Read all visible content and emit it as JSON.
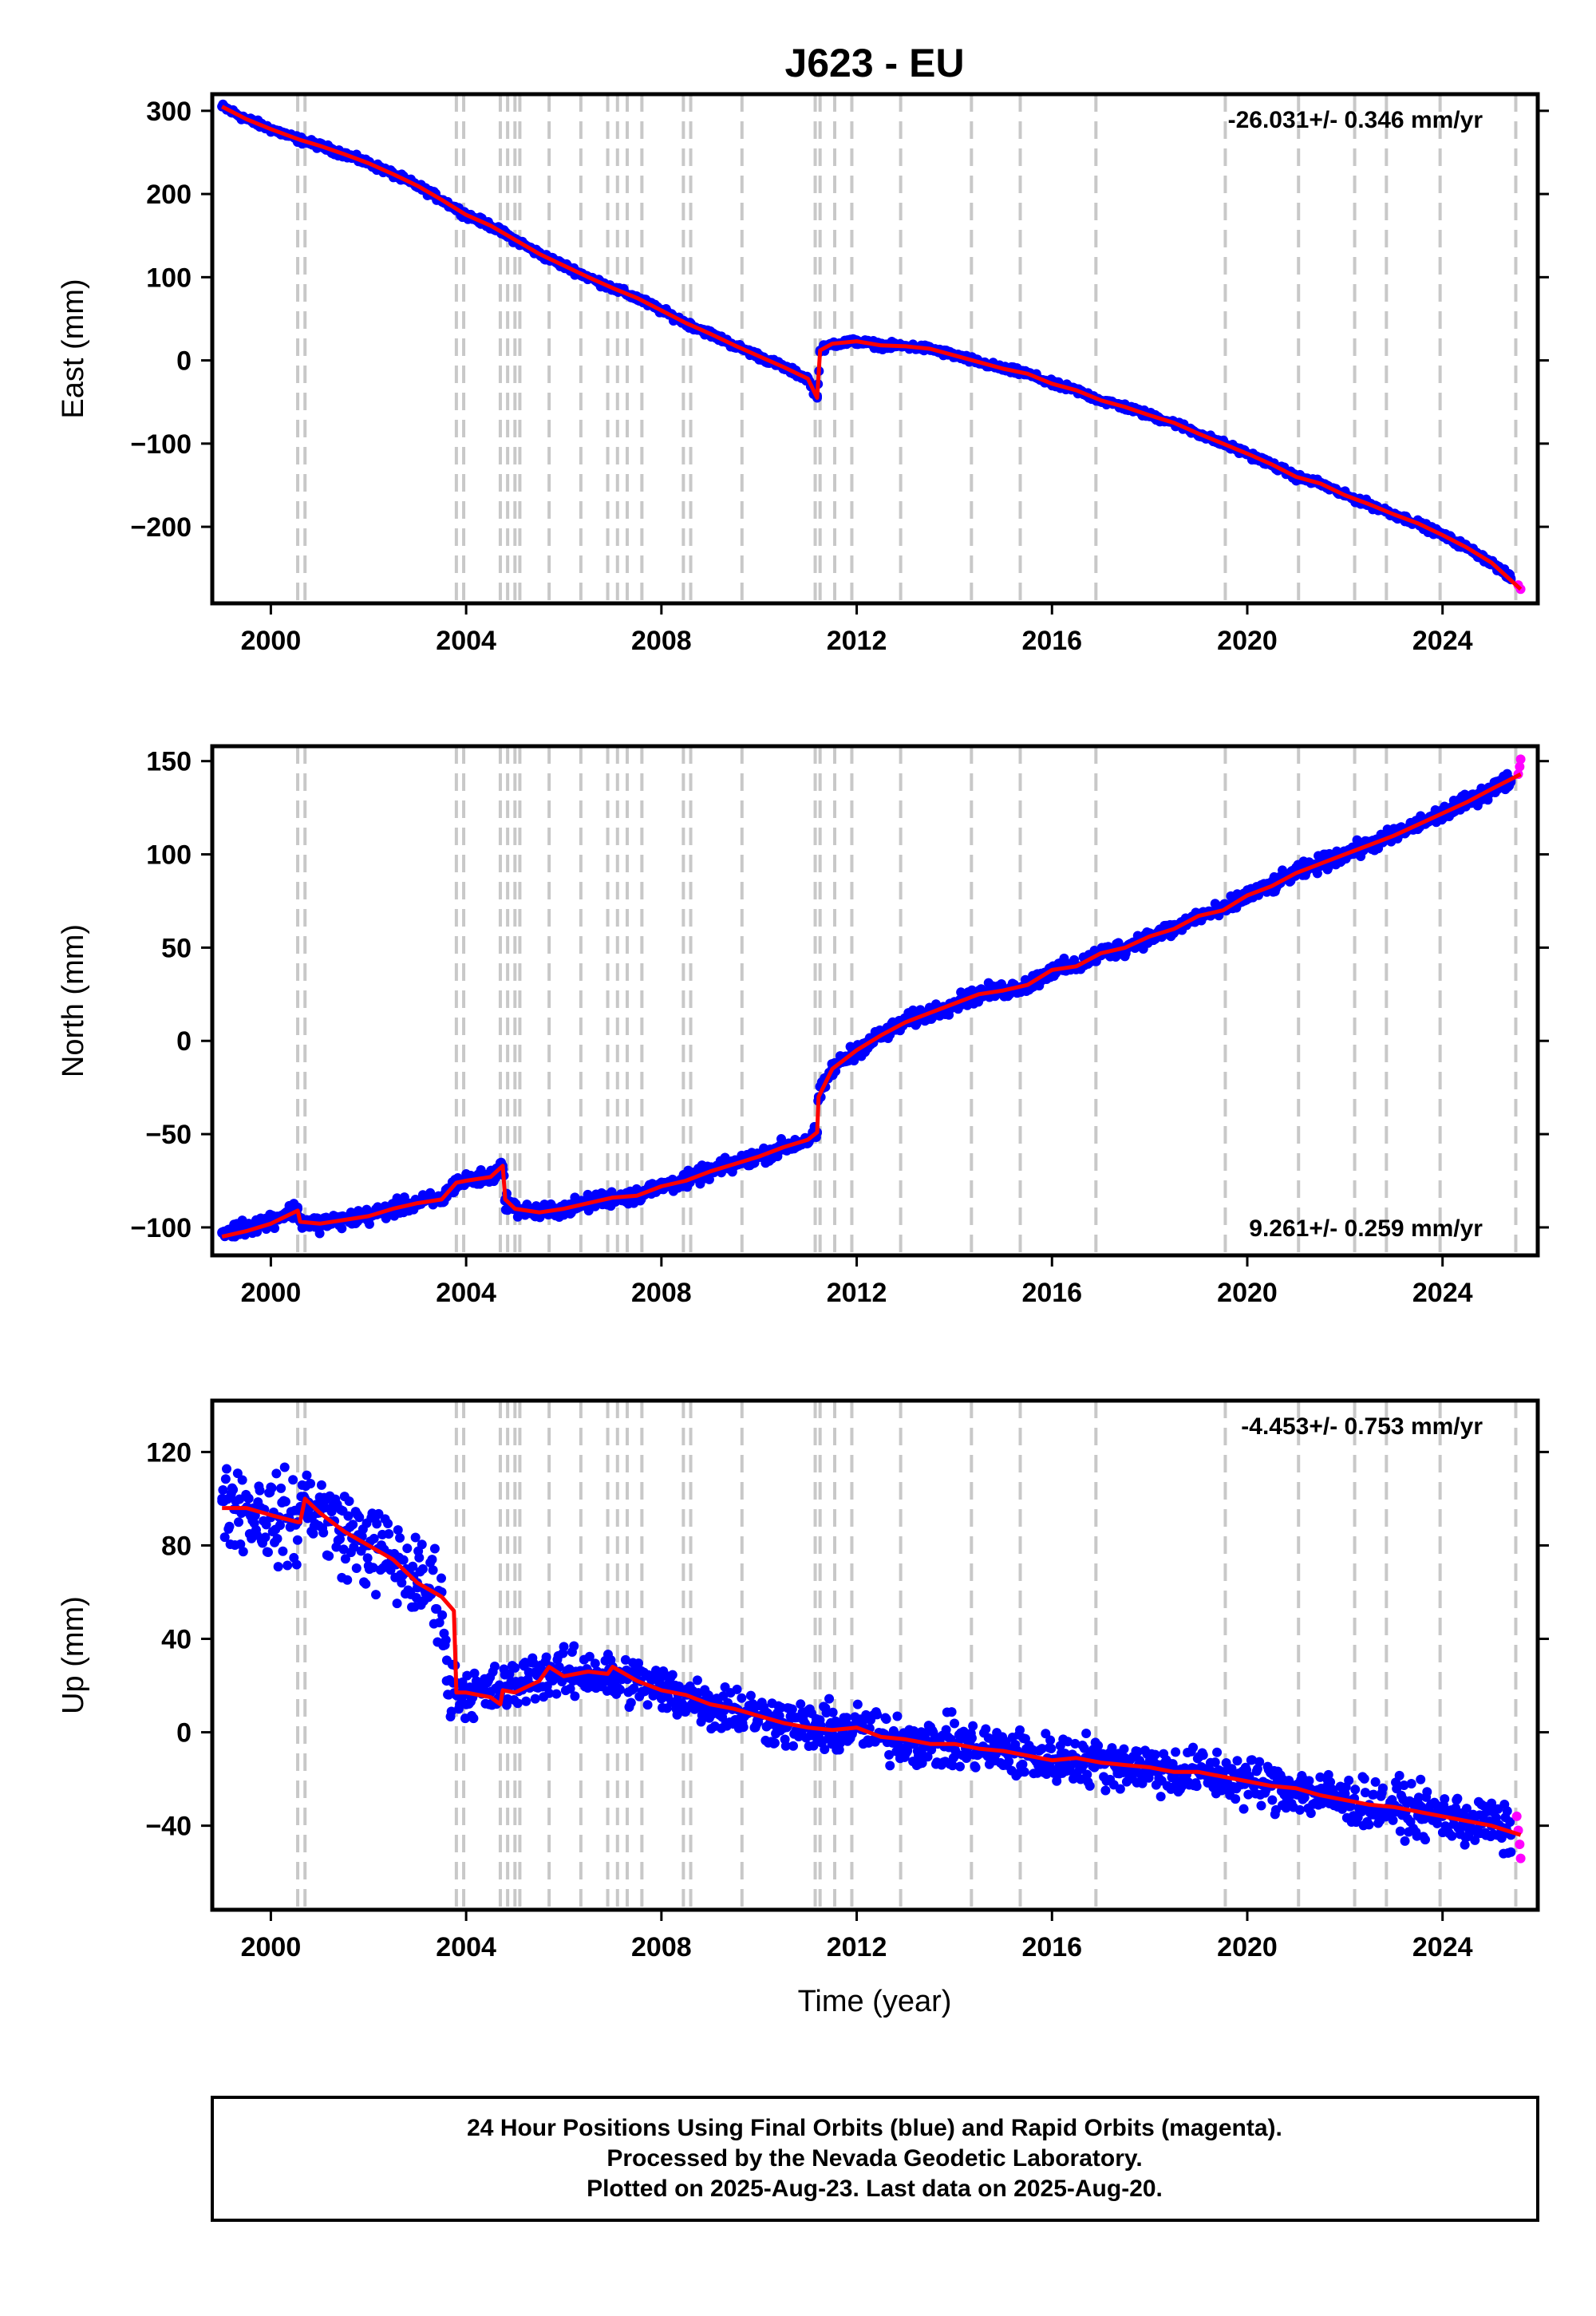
{
  "title": "J623 - EU",
  "xlabel": "Time (year)",
  "caption": {
    "line1": "24 Hour Positions Using Final Orbits (blue) and Rapid Orbits (magenta).",
    "line2": "Processed by the Nevada Geodetic Laboratory.",
    "line3": "Plotted on 2025-Aug-23. Last data on 2025-Aug-20."
  },
  "colors": {
    "final_orbits": "#0000ff",
    "rapid_orbits": "#ff00ff",
    "model": "#ff0000",
    "event_lines": "#c8c8c8",
    "frame": "#000000"
  },
  "chart_data": [
    {
      "type": "scatter",
      "component": "East",
      "ylabel": "East (mm)",
      "rate_label": "-26.031+/- 0.346 mm/yr",
      "rate_position": "top-right",
      "xlim": [
        1998.8,
        2025.95
      ],
      "ylim": [
        -292,
        320
      ],
      "x_ticks": [
        "2000",
        "2004",
        "2008",
        "2012",
        "2016",
        "2020",
        "2024"
      ],
      "x_tick_values": [
        2000,
        2004,
        2008,
        2012,
        2016,
        2020,
        2024
      ],
      "y_ticks": [
        "300",
        "200",
        "100",
        "0",
        "−100",
        "−200"
      ],
      "y_tick_values": [
        300,
        200,
        100,
        0,
        -100,
        -200
      ],
      "event_lines": [
        2000.55,
        2000.7,
        2003.8,
        2003.95,
        2004.7,
        2004.85,
        2005.0,
        2005.1,
        2005.7,
        2006.35,
        2006.9,
        2007.1,
        2007.3,
        2007.6,
        2008.45,
        2008.6,
        2009.65,
        2011.15,
        2011.25,
        2011.55,
        2011.9,
        2012.9,
        2014.35,
        2015.35,
        2016.9,
        2019.55,
        2021.05,
        2022.2,
        2022.85,
        2023.95,
        2025.5
      ],
      "series": [
        {
          "name": "Final Orbits",
          "style": "points",
          "color": "#0000ff",
          "x": [
            1999.0,
            1999.5,
            2000.0,
            2000.6,
            2001.0,
            2001.5,
            2002.0,
            2002.5,
            2003.0,
            2003.5,
            2004.0,
            2004.5,
            2005.0,
            2005.5,
            2006.0,
            2006.5,
            2007.0,
            2007.5,
            2008.0,
            2008.5,
            2009.0,
            2009.5,
            2010.0,
            2010.5,
            2011.0,
            2011.19,
            2011.25,
            2011.5,
            2012.0,
            2012.5,
            2013.0,
            2013.5,
            2014.0,
            2014.5,
            2015.0,
            2015.5,
            2016.0,
            2016.5,
            2017.0,
            2017.5,
            2018.0,
            2018.5,
            2019.0,
            2019.5,
            2020.0,
            2020.5,
            2021.0,
            2021.5,
            2022.0,
            2022.5,
            2023.0,
            2023.5,
            2024.0,
            2024.5,
            2025.0,
            2025.4
          ],
          "y": [
            305,
            290,
            278,
            265,
            258,
            248,
            237,
            224,
            210,
            193,
            175,
            162,
            145,
            128,
            114,
            100,
            87,
            75,
            60,
            45,
            32,
            18,
            5,
            -8,
            -22,
            -45,
            12,
            20,
            23,
            18,
            17,
            14,
            6,
            -2,
            -10,
            -16,
            -28,
            -36,
            -48,
            -56,
            -66,
            -75,
            -88,
            -100,
            -112,
            -125,
            -140,
            -148,
            -162,
            -173,
            -185,
            -196,
            -210,
            -225,
            -243,
            -262
          ]
        },
        {
          "name": "Rapid Orbits",
          "style": "points",
          "color": "#ff00ff",
          "x": [
            2025.55,
            2025.6
          ],
          "y": [
            -270,
            -275
          ]
        },
        {
          "name": "Model",
          "style": "line",
          "color": "#ff0000",
          "x": [
            1999.0,
            1999.5,
            2000.0,
            2000.6,
            2001.0,
            2001.5,
            2002.0,
            2002.5,
            2003.0,
            2003.5,
            2004.0,
            2004.5,
            2005.0,
            2005.5,
            2006.0,
            2006.5,
            2007.0,
            2007.5,
            2008.0,
            2008.5,
            2009.0,
            2009.5,
            2010.0,
            2010.5,
            2011.0,
            2011.19,
            2011.25,
            2011.5,
            2012.0,
            2012.5,
            2013.0,
            2013.5,
            2014.0,
            2014.5,
            2015.0,
            2015.5,
            2016.0,
            2016.5,
            2017.0,
            2017.5,
            2018.0,
            2018.5,
            2019.0,
            2019.5,
            2020.0,
            2020.5,
            2021.0,
            2021.5,
            2022.0,
            2022.5,
            2023.0,
            2023.5,
            2024.0,
            2024.5,
            2025.0,
            2025.6
          ],
          "y": [
            305,
            290,
            278,
            265,
            258,
            248,
            237,
            224,
            210,
            193,
            175,
            162,
            145,
            128,
            114,
            100,
            87,
            75,
            60,
            45,
            32,
            18,
            5,
            -8,
            -22,
            -45,
            12,
            20,
            23,
            18,
            17,
            14,
            6,
            -2,
            -10,
            -16,
            -28,
            -36,
            -48,
            -56,
            -66,
            -75,
            -88,
            -100,
            -112,
            -125,
            -140,
            -148,
            -162,
            -173,
            -185,
            -196,
            -210,
            -225,
            -243,
            -275
          ]
        }
      ]
    },
    {
      "type": "scatter",
      "component": "North",
      "ylabel": "North (mm)",
      "rate_label": "9.261+/- 0.259 mm/yr",
      "rate_position": "bottom-right",
      "xlim": [
        1998.8,
        2025.95
      ],
      "ylim": [
        -115,
        158
      ],
      "x_ticks": [
        "2000",
        "2004",
        "2008",
        "2012",
        "2016",
        "2020",
        "2024"
      ],
      "x_tick_values": [
        2000,
        2004,
        2008,
        2012,
        2016,
        2020,
        2024
      ],
      "y_ticks": [
        "150",
        "100",
        "50",
        "0",
        "−50",
        "−100"
      ],
      "y_tick_values": [
        150,
        100,
        50,
        0,
        -50,
        -100
      ],
      "event_lines": [
        2000.55,
        2000.7,
        2003.8,
        2003.95,
        2004.7,
        2004.85,
        2005.0,
        2005.1,
        2005.7,
        2006.35,
        2006.9,
        2007.1,
        2007.3,
        2007.6,
        2008.45,
        2008.6,
        2009.65,
        2011.15,
        2011.25,
        2011.55,
        2011.9,
        2012.9,
        2014.35,
        2015.35,
        2016.9,
        2019.55,
        2021.05,
        2022.2,
        2022.85,
        2023.95,
        2025.5
      ],
      "series": [
        {
          "name": "Final Orbits",
          "style": "points",
          "color": "#0000ff",
          "x": [
            1999.0,
            1999.5,
            2000.0,
            2000.55,
            2000.6,
            2001.0,
            2001.5,
            2002.0,
            2002.5,
            2003.0,
            2003.5,
            2003.8,
            2004.0,
            2004.5,
            2004.75,
            2004.8,
            2005.0,
            2005.5,
            2006.0,
            2006.5,
            2007.0,
            2007.5,
            2008.0,
            2008.5,
            2009.0,
            2009.5,
            2010.0,
            2010.5,
            2011.0,
            2011.19,
            2011.22,
            2011.5,
            2012.0,
            2012.5,
            2013.0,
            2013.5,
            2014.0,
            2014.5,
            2015.0,
            2015.5,
            2016.0,
            2016.5,
            2017.0,
            2017.5,
            2018.0,
            2018.5,
            2019.0,
            2019.5,
            2020.0,
            2020.5,
            2021.0,
            2021.5,
            2022.0,
            2022.5,
            2023.0,
            2023.5,
            2024.0,
            2024.5,
            2025.0,
            2025.4
          ],
          "y": [
            -103,
            -100,
            -96,
            -90,
            -97,
            -98,
            -96,
            -94,
            -90,
            -87,
            -85,
            -76,
            -75,
            -73,
            -67,
            -85,
            -90,
            -92,
            -90,
            -87,
            -84,
            -83,
            -78,
            -75,
            -70,
            -66,
            -62,
            -57,
            -53,
            -49,
            -30,
            -15,
            -5,
            3,
            10,
            15,
            20,
            25,
            27,
            30,
            38,
            40,
            47,
            50,
            56,
            60,
            67,
            70,
            78,
            83,
            90,
            95,
            100,
            105,
            110,
            116,
            122,
            128,
            135,
            140
          ]
        },
        {
          "name": "Rapid Orbits",
          "style": "points",
          "color": "#ff00ff",
          "x": [
            2025.55,
            2025.58,
            2025.6
          ],
          "y": [
            143,
            147,
            151
          ]
        },
        {
          "name": "Model",
          "style": "line",
          "color": "#ff0000",
          "x": [
            1999.0,
            1999.5,
            2000.0,
            2000.55,
            2000.6,
            2001.0,
            2001.5,
            2002.0,
            2002.5,
            2003.0,
            2003.5,
            2003.8,
            2004.0,
            2004.5,
            2004.75,
            2004.8,
            2005.0,
            2005.5,
            2006.0,
            2006.5,
            2007.0,
            2007.5,
            2008.0,
            2008.5,
            2009.0,
            2009.5,
            2010.0,
            2010.5,
            2011.0,
            2011.19,
            2011.22,
            2011.5,
            2012.0,
            2012.5,
            2013.0,
            2013.5,
            2014.0,
            2014.5,
            2015.0,
            2015.5,
            2016.0,
            2016.5,
            2017.0,
            2017.5,
            2018.0,
            2018.5,
            2019.0,
            2019.5,
            2020.0,
            2020.5,
            2021.0,
            2021.5,
            2022.0,
            2022.5,
            2023.0,
            2023.5,
            2024.0,
            2024.5,
            2025.0,
            2025.6
          ],
          "y": [
            -105,
            -102,
            -98,
            -91,
            -97,
            -98,
            -96,
            -94,
            -90,
            -87,
            -85,
            -76,
            -75,
            -73,
            -67,
            -85,
            -90,
            -92,
            -90,
            -87,
            -84,
            -83,
            -78,
            -75,
            -70,
            -66,
            -62,
            -57,
            -53,
            -49,
            -30,
            -15,
            -5,
            3,
            10,
            15,
            20,
            25,
            27,
            30,
            38,
            40,
            47,
            50,
            56,
            60,
            67,
            70,
            78,
            83,
            90,
            95,
            100,
            105,
            110,
            116,
            122,
            128,
            135,
            143
          ]
        }
      ]
    },
    {
      "type": "scatter",
      "component": "Up",
      "ylabel": "Up (mm)",
      "rate_label": "-4.453+/- 0.753 mm/yr",
      "rate_position": "top-right",
      "xlim": [
        1998.8,
        2025.95
      ],
      "ylim": [
        -76,
        142
      ],
      "x_ticks": [
        "2000",
        "2004",
        "2008",
        "2012",
        "2016",
        "2020",
        "2024"
      ],
      "x_tick_values": [
        2000,
        2004,
        2008,
        2012,
        2016,
        2020,
        2024
      ],
      "y_ticks": [
        "120",
        "80",
        "40",
        "0",
        "−40"
      ],
      "y_tick_values": [
        120,
        80,
        40,
        0,
        -40
      ],
      "event_lines": [
        2000.55,
        2000.7,
        2003.8,
        2003.95,
        2004.7,
        2004.85,
        2005.0,
        2005.1,
        2005.7,
        2006.35,
        2006.9,
        2007.1,
        2007.3,
        2007.6,
        2008.45,
        2008.6,
        2009.65,
        2011.15,
        2011.25,
        2011.55,
        2011.9,
        2012.9,
        2014.35,
        2015.35,
        2016.9,
        2019.55,
        2021.05,
        2022.2,
        2022.85,
        2023.95,
        2025.5
      ],
      "series": [
        {
          "name": "Final Orbits",
          "style": "points",
          "color": "#0000ff",
          "x": [
            1999.0,
            1999.5,
            2000.0,
            2000.55,
            2000.7,
            2001.0,
            2001.5,
            2002.0,
            2002.5,
            2003.0,
            2003.5,
            2003.6,
            2004.0,
            2004.5,
            2005.0,
            2005.5,
            2006.0,
            2006.5,
            2007.0,
            2007.5,
            2008.0,
            2008.5,
            2009.0,
            2009.5,
            2010.0,
            2010.5,
            2011.0,
            2011.5,
            2012.0,
            2012.5,
            2013.0,
            2013.5,
            2014.0,
            2014.5,
            2015.0,
            2015.5,
            2016.0,
            2016.5,
            2017.0,
            2017.5,
            2018.0,
            2018.5,
            2019.0,
            2019.5,
            2020.0,
            2020.5,
            2021.0,
            2021.5,
            2022.0,
            2022.5,
            2023.0,
            2023.5,
            2024.0,
            2024.5,
            2025.0,
            2025.4
          ],
          "y": [
            100,
            96,
            92,
            90,
            100,
            94,
            86,
            80,
            74,
            64,
            60,
            22,
            17,
            17,
            20,
            26,
            24,
            26,
            23,
            22,
            18,
            16,
            12,
            10,
            7,
            4,
            2,
            1,
            2,
            -2,
            -3,
            -5,
            -5,
            -7,
            -8,
            -10,
            -12,
            -11,
            -13,
            -14,
            -15,
            -17,
            -17,
            -19,
            -21,
            -23,
            -24,
            -27,
            -29,
            -31,
            -32,
            -34,
            -36,
            -38,
            -40,
            -44
          ]
        },
        {
          "name": "Rapid Orbits",
          "style": "points",
          "color": "#ff00ff",
          "x": [
            2025.52,
            2025.55,
            2025.58,
            2025.6
          ],
          "y": [
            -36,
            -42,
            -48,
            -54
          ]
        },
        {
          "name": "Model",
          "style": "line",
          "color": "#ff0000",
          "x": [
            1999.0,
            1999.5,
            2000.0,
            2000.55,
            2000.6,
            2000.7,
            2001.0,
            2001.5,
            2002.0,
            2002.5,
            2003.0,
            2003.5,
            2003.75,
            2003.8,
            2004.0,
            2004.5,
            2004.7,
            2004.75,
            2005.0,
            2005.5,
            2005.7,
            2006.0,
            2006.5,
            2006.9,
            2007.0,
            2007.5,
            2008.0,
            2008.5,
            2009.0,
            2009.5,
            2010.0,
            2010.5,
            2011.0,
            2011.5,
            2012.0,
            2012.5,
            2013.0,
            2013.5,
            2014.0,
            2014.5,
            2015.0,
            2015.5,
            2016.0,
            2016.5,
            2017.0,
            2017.5,
            2018.0,
            2018.5,
            2019.0,
            2019.5,
            2020.0,
            2020.5,
            2021.0,
            2021.5,
            2022.0,
            2022.5,
            2023.0,
            2023.5,
            2024.0,
            2024.5,
            2025.0,
            2025.6
          ],
          "y": [
            96,
            96,
            93,
            90,
            90,
            100,
            94,
            86,
            80,
            74,
            64,
            58,
            52,
            17,
            17,
            15,
            12,
            18,
            17,
            22,
            28,
            24,
            26,
            25,
            28,
            22,
            18,
            16,
            12,
            10,
            7,
            4,
            2,
            1,
            2,
            -2,
            -3,
            -5,
            -5,
            -7,
            -8,
            -10,
            -12,
            -11,
            -13,
            -14,
            -15,
            -17,
            -17,
            -19,
            -21,
            -23,
            -24,
            -27,
            -29,
            -31,
            -32,
            -34,
            -36,
            -38,
            -40,
            -44
          ]
        }
      ]
    }
  ]
}
